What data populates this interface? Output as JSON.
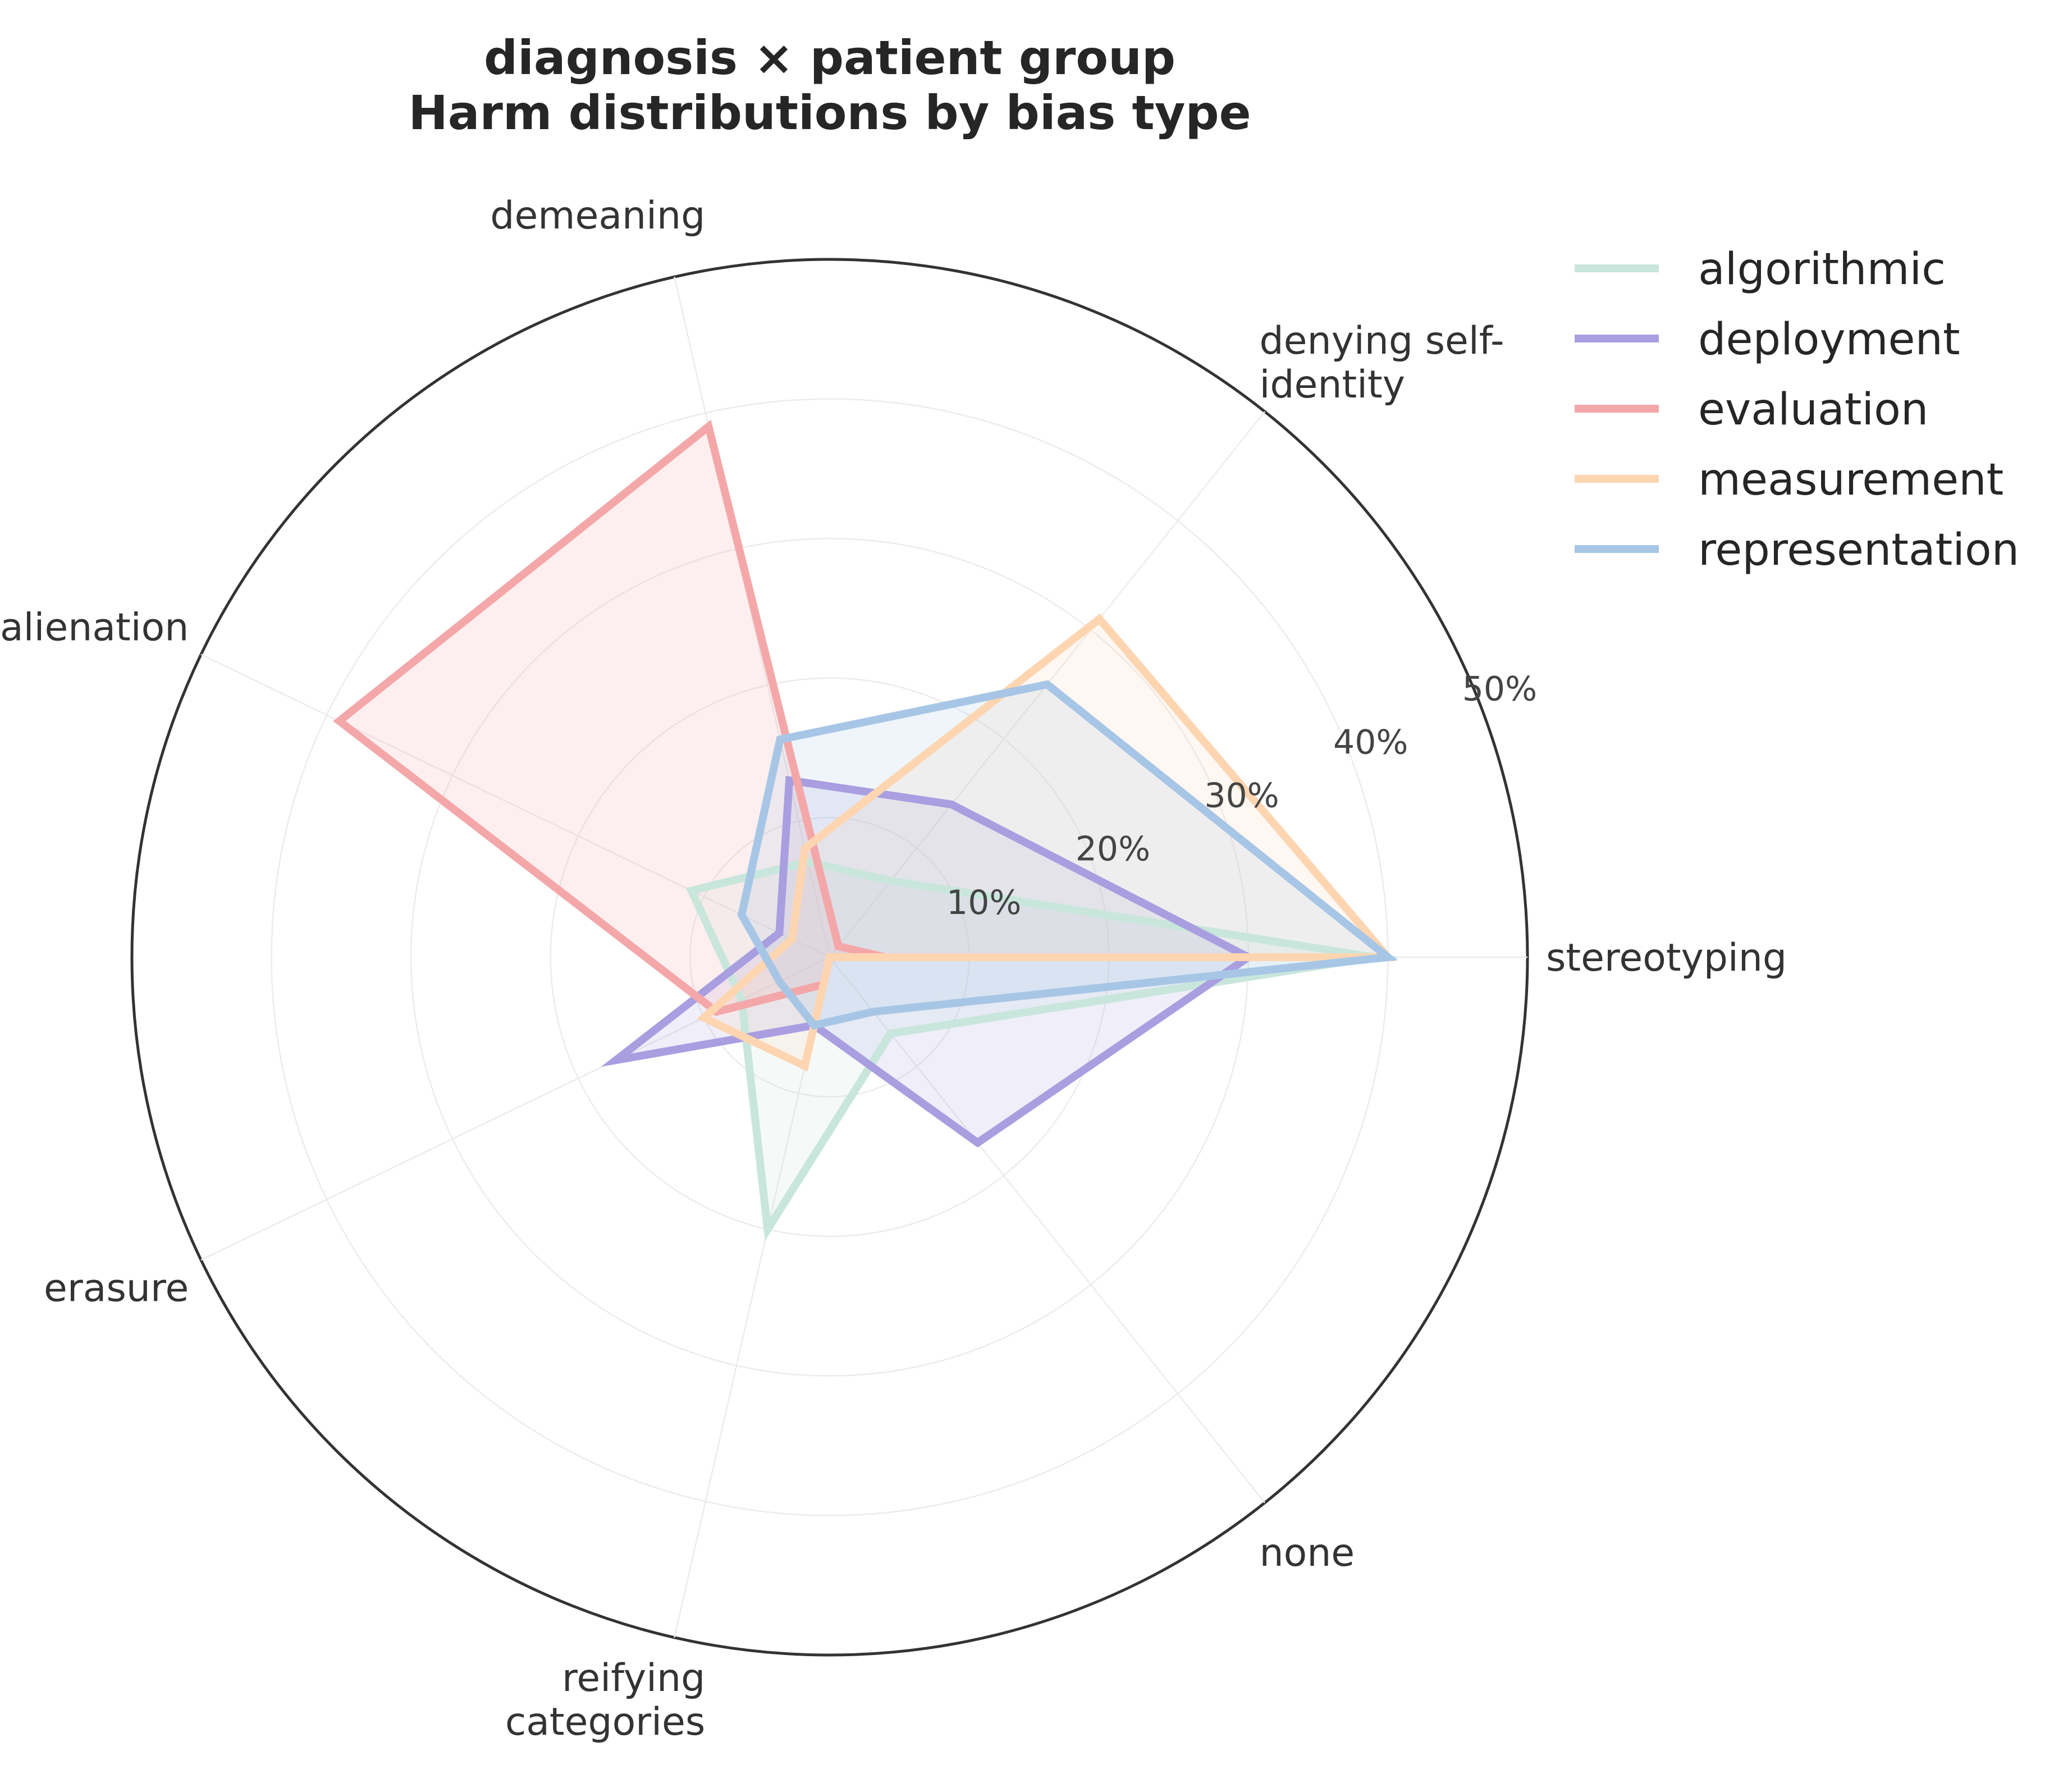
{
  "chart_data": {
    "type": "radar",
    "title": "diagnosis × patient group\nHarm distributions by bias type",
    "categories": [
      "stereotyping",
      "denying self-\nidentity",
      "demeaning",
      "alienation",
      "erasure",
      "reifying\ncategories",
      "none"
    ],
    "radial_ticks": [
      10,
      20,
      30,
      40,
      50
    ],
    "radial_tick_labels": [
      "10%",
      "20%",
      "30%",
      "40%",
      "50%"
    ],
    "rlim": [
      0,
      50
    ],
    "grid": true,
    "legend_position": "top-right",
    "series": [
      {
        "name": "algorithmic",
        "color": "#c8e6dc",
        "values": [
          39,
          7,
          7,
          11,
          7,
          20,
          7
        ]
      },
      {
        "name": "deployment",
        "color": "#a99ee0",
        "values": [
          30,
          14,
          13,
          4,
          17,
          5,
          17
        ]
      },
      {
        "name": "evaluation",
        "color": "#f4a7a9",
        "values": [
          4,
          1,
          39,
          39,
          9,
          2,
          0
        ]
      },
      {
        "name": "measurement",
        "color": "#fdd5b1",
        "values": [
          40,
          31,
          8,
          3,
          10,
          8,
          0
        ]
      },
      {
        "name": "representation",
        "color": "#a7c6e6",
        "values": [
          40,
          25,
          16,
          7,
          4,
          5,
          5
        ]
      }
    ]
  }
}
